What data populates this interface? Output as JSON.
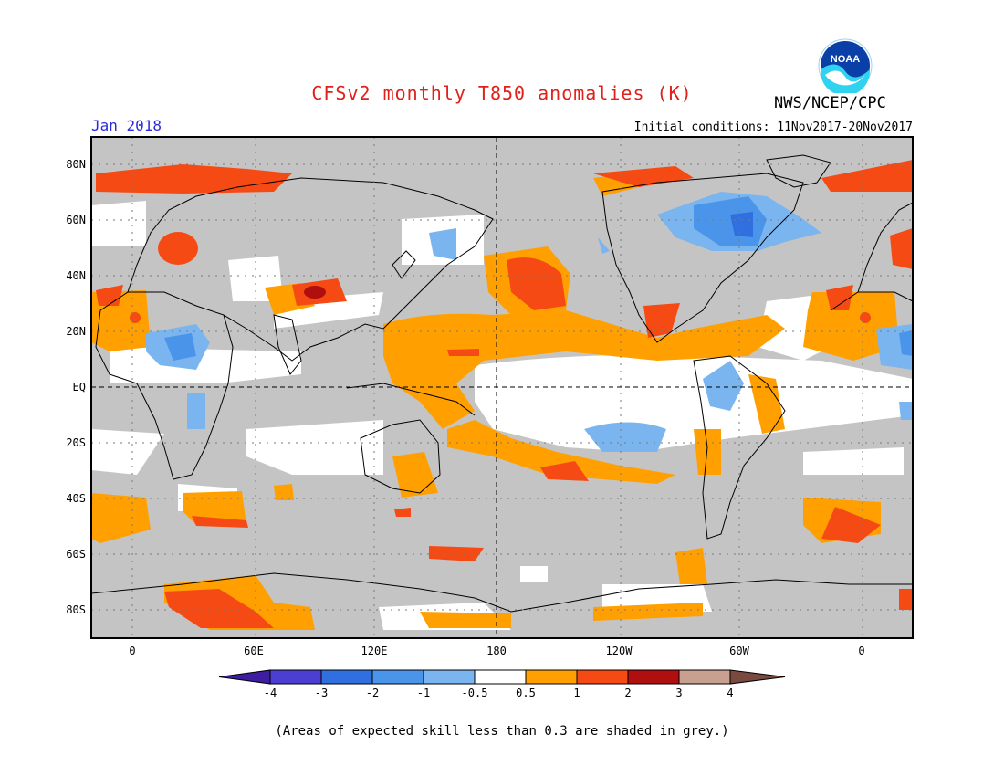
{
  "header": {
    "title": "CFSv2 monthly T850 anomalies (K)",
    "month": "Jan 2018",
    "initial_conditions": "Initial conditions: 11Nov2017-20Nov2017",
    "agency": "NWS/NCEP/CPC",
    "logo_text": "NOAA"
  },
  "axes": {
    "lat_labels": [
      "80N",
      "60N",
      "40N",
      "20N",
      "EQ",
      "20S",
      "40S",
      "60S",
      "80S"
    ],
    "lon_labels": [
      "0",
      "60E",
      "120E",
      "180",
      "120W",
      "60W",
      "0"
    ]
  },
  "colorbar": {
    "labels": [
      "-4",
      "-3",
      "-2",
      "-1",
      "-0.5",
      "0.5",
      "1",
      "2",
      "3",
      "4"
    ],
    "colors": [
      "#3e1ea0",
      "#4a3fd0",
      "#2f6fe0",
      "#4a95ea",
      "#7ab5f0",
      "#ffffff",
      "#ffa000",
      "#f64a14",
      "#b00f0f",
      "#c8a090",
      "#7a4a40"
    ]
  },
  "colors": {
    "grey_skill": "#c4c4c4",
    "coast": "#000000",
    "title": "#e0201a",
    "month": "#2a2ae0"
  },
  "footnote": "(Areas of expected skill less than 0.3 are shaded in grey.)"
}
